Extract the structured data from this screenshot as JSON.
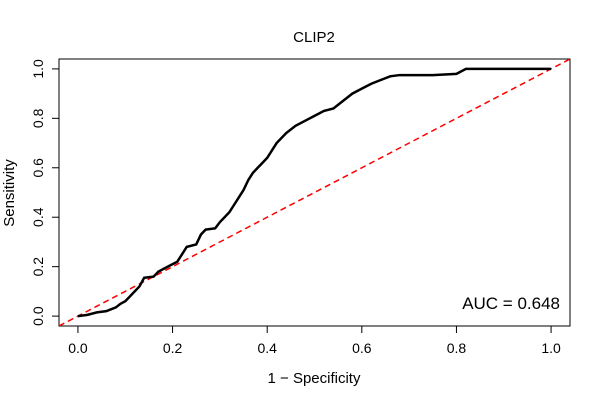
{
  "chart_data": {
    "type": "line",
    "title": "CLIP2",
    "xlabel": "1 − Specificity",
    "ylabel": "Sensitivity",
    "xlim": [
      -0.04,
      1.04
    ],
    "ylim": [
      -0.04,
      1.04
    ],
    "x_ticks": [
      "0.0",
      "0.2",
      "0.4",
      "0.6",
      "0.8",
      "1.0"
    ],
    "y_ticks": [
      "0.0",
      "0.2",
      "0.4",
      "0.6",
      "0.8",
      "1.0"
    ],
    "annotation": "AUC = 0.648",
    "grid": false,
    "series": [
      {
        "name": "ROC curve",
        "color": "#000000",
        "style": "solid",
        "points": [
          [
            0.0,
            0.0
          ],
          [
            0.02,
            0.005
          ],
          [
            0.04,
            0.015
          ],
          [
            0.06,
            0.02
          ],
          [
            0.08,
            0.035
          ],
          [
            0.09,
            0.05
          ],
          [
            0.1,
            0.06
          ],
          [
            0.11,
            0.08
          ],
          [
            0.12,
            0.1
          ],
          [
            0.13,
            0.12
          ],
          [
            0.14,
            0.155
          ],
          [
            0.16,
            0.16
          ],
          [
            0.17,
            0.18
          ],
          [
            0.19,
            0.2
          ],
          [
            0.21,
            0.22
          ],
          [
            0.22,
            0.25
          ],
          [
            0.23,
            0.28
          ],
          [
            0.25,
            0.29
          ],
          [
            0.26,
            0.33
          ],
          [
            0.27,
            0.35
          ],
          [
            0.29,
            0.355
          ],
          [
            0.3,
            0.38
          ],
          [
            0.32,
            0.42
          ],
          [
            0.33,
            0.45
          ],
          [
            0.34,
            0.48
          ],
          [
            0.35,
            0.51
          ],
          [
            0.36,
            0.55
          ],
          [
            0.37,
            0.58
          ],
          [
            0.38,
            0.6
          ],
          [
            0.39,
            0.62
          ],
          [
            0.4,
            0.64
          ],
          [
            0.41,
            0.67
          ],
          [
            0.42,
            0.7
          ],
          [
            0.44,
            0.74
          ],
          [
            0.46,
            0.77
          ],
          [
            0.48,
            0.79
          ],
          [
            0.5,
            0.81
          ],
          [
            0.52,
            0.83
          ],
          [
            0.54,
            0.84
          ],
          [
            0.56,
            0.87
          ],
          [
            0.58,
            0.9
          ],
          [
            0.6,
            0.92
          ],
          [
            0.62,
            0.94
          ],
          [
            0.64,
            0.955
          ],
          [
            0.66,
            0.97
          ],
          [
            0.68,
            0.975
          ],
          [
            0.72,
            0.975
          ],
          [
            0.75,
            0.975
          ],
          [
            0.8,
            0.98
          ],
          [
            0.82,
            1.0
          ],
          [
            0.86,
            1.0
          ],
          [
            1.0,
            1.0
          ]
        ]
      },
      {
        "name": "Reference",
        "color": "#ff0000",
        "style": "dashed",
        "points": [
          [
            -0.04,
            -0.04
          ],
          [
            1.04,
            1.04
          ]
        ]
      }
    ]
  }
}
